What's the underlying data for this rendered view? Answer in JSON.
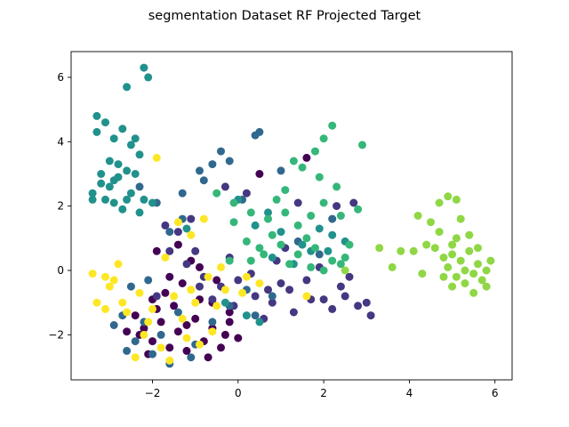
{
  "chart_data": {
    "type": "scatter",
    "title": "segmentation Dataset RF Projected Target",
    "xlabel": "",
    "ylabel": "",
    "xlim": [
      -3.9,
      6.4
    ],
    "ylim": [
      -3.4,
      6.8
    ],
    "xticks": [
      -2,
      0,
      2,
      4,
      6
    ],
    "yticks": [
      -2,
      0,
      2,
      4,
      6
    ],
    "xtick_labels": [
      "−2",
      "0",
      "2",
      "4",
      "6"
    ],
    "ytick_labels": [
      "−2",
      "0",
      "2",
      "4",
      "6"
    ],
    "grid": false,
    "legend": "none",
    "colormap": "viridis",
    "series": [
      {
        "color": "#440154",
        "points": [
          [
            -2.2,
            -1.8
          ],
          [
            -2.0,
            -2.2
          ],
          [
            -1.8,
            -1.6
          ],
          [
            -1.6,
            -2.4
          ],
          [
            -1.9,
            -1.2
          ],
          [
            -2.3,
            -2.0
          ],
          [
            -1.4,
            -1.9
          ],
          [
            -1.2,
            -2.5
          ],
          [
            -1.0,
            -1.5
          ],
          [
            -0.8,
            -2.2
          ],
          [
            -0.6,
            -1.8
          ],
          [
            -0.4,
            -2.4
          ],
          [
            -0.2,
            -1.3
          ],
          [
            0.0,
            -2.1
          ],
          [
            -1.7,
            -0.7
          ],
          [
            -1.3,
            -0.4
          ],
          [
            -1.1,
            0.3
          ],
          [
            -0.9,
            -0.9
          ],
          [
            -0.5,
            -0.3
          ],
          [
            -1.5,
            -1.1
          ],
          [
            -2.1,
            -2.6
          ],
          [
            -0.7,
            -2.7
          ],
          [
            -1.9,
            0.6
          ],
          [
            -1.4,
            0.8
          ],
          [
            -0.9,
            0.1
          ],
          [
            -0.2,
            -1.6
          ],
          [
            -2.4,
            -1.4
          ],
          [
            0.5,
            3.0
          ],
          [
            1.6,
            3.5
          ],
          [
            -0.3,
            -2.0
          ],
          [
            -2.6,
            -1.9
          ],
          [
            -1.6,
            -0.2
          ],
          [
            -0.6,
            -1.0
          ],
          [
            -1.2,
            -1.7
          ],
          [
            -2.0,
            -0.9
          ]
        ]
      },
      {
        "color": "#453781",
        "points": [
          [
            -1.6,
            0.6
          ],
          [
            -1.2,
            0.2
          ],
          [
            -0.8,
            -0.2
          ],
          [
            -0.4,
            -0.5
          ],
          [
            0.0,
            -0.3
          ],
          [
            0.4,
            -0.8
          ],
          [
            0.8,
            -1.0
          ],
          [
            1.2,
            -0.6
          ],
          [
            1.6,
            -0.3
          ],
          [
            2.0,
            -0.9
          ],
          [
            2.4,
            -0.5
          ],
          [
            2.8,
            -1.1
          ],
          [
            3.1,
            -1.4
          ],
          [
            2.6,
            -0.2
          ],
          [
            1.9,
            0.1
          ],
          [
            1.3,
            -1.3
          ],
          [
            0.6,
            -1.5
          ],
          [
            -0.1,
            -1.1
          ],
          [
            -0.6,
            -0.9
          ],
          [
            -1.0,
            0.6
          ],
          [
            -1.9,
            -0.8
          ],
          [
            0.3,
            -0.1
          ],
          [
            1.0,
            -0.4
          ],
          [
            2.2,
            -1.2
          ],
          [
            -1.4,
            1.2
          ],
          [
            -0.3,
            2.6
          ],
          [
            0.2,
            2.4
          ],
          [
            1.4,
            2.1
          ],
          [
            2.3,
            2.0
          ],
          [
            2.7,
            2.1
          ],
          [
            -0.9,
            -0.5
          ],
          [
            0.9,
            0.3
          ],
          [
            3.0,
            -1.0
          ],
          [
            1.7,
            -0.9
          ],
          [
            -0.2,
            0.4
          ],
          [
            0.7,
            -0.6
          ],
          [
            2.5,
            -0.8
          ],
          [
            1.1,
            0.7
          ],
          [
            -1.7,
            1.4
          ],
          [
            -1.1,
            1.6
          ]
        ]
      },
      {
        "color": "#31688e",
        "points": [
          [
            -2.7,
            -1.4
          ],
          [
            -2.4,
            -2.2
          ],
          [
            -2.0,
            -2.6
          ],
          [
            -1.6,
            -2.9
          ],
          [
            -2.2,
            -1.6
          ],
          [
            -1.8,
            -2.0
          ],
          [
            -1.4,
            -1.3
          ],
          [
            -1.0,
            -2.3
          ],
          [
            -0.6,
            -1.6
          ],
          [
            -0.2,
            -1.1
          ],
          [
            0.4,
            -1.4
          ],
          [
            0.8,
            -0.8
          ],
          [
            -1.3,
            1.6
          ],
          [
            -1.6,
            1.2
          ],
          [
            -0.8,
            2.8
          ],
          [
            -0.4,
            3.7
          ],
          [
            -2.3,
            2.6
          ],
          [
            -1.9,
            2.1
          ],
          [
            0.4,
            4.2
          ],
          [
            0.5,
            4.3
          ],
          [
            -2.5,
            -0.5
          ],
          [
            -2.1,
            -0.3
          ],
          [
            1.4,
            0.9
          ],
          [
            2.2,
            1.6
          ],
          [
            -0.2,
            3.4
          ],
          [
            -0.9,
            3.1
          ],
          [
            -1.3,
            2.4
          ],
          [
            0.1,
            2.2
          ],
          [
            1.0,
            3.1
          ],
          [
            -2.9,
            -1.7
          ],
          [
            -0.6,
            3.3
          ],
          [
            1.9,
            0.5
          ],
          [
            -1.1,
            -2.7
          ],
          [
            0.2,
            -0.6
          ],
          [
            -2.6,
            -2.5
          ]
        ]
      },
      {
        "color": "#21918c",
        "points": [
          [
            -3.3,
            4.3
          ],
          [
            -3.1,
            4.6
          ],
          [
            -2.9,
            4.1
          ],
          [
            -3.2,
            3.0
          ],
          [
            -3.0,
            2.6
          ],
          [
            -2.8,
            2.9
          ],
          [
            -3.1,
            2.2
          ],
          [
            -3.4,
            2.4
          ],
          [
            -2.9,
            2.1
          ],
          [
            -2.6,
            3.1
          ],
          [
            -2.5,
            2.4
          ],
          [
            -2.7,
            1.9
          ],
          [
            -3.3,
            4.8
          ],
          [
            -2.7,
            4.4
          ],
          [
            -2.4,
            4.1
          ],
          [
            -2.6,
            5.7
          ],
          [
            -2.2,
            6.3
          ],
          [
            -2.1,
            6.0
          ],
          [
            -3.0,
            3.4
          ],
          [
            -2.8,
            3.3
          ],
          [
            -3.2,
            2.7
          ],
          [
            -2.4,
            3.0
          ],
          [
            -2.3,
            1.8
          ],
          [
            -2.2,
            2.2
          ],
          [
            -2.0,
            2.1
          ],
          [
            -3.4,
            2.2
          ],
          [
            -2.9,
            2.8
          ],
          [
            -2.6,
            2.2
          ],
          [
            -2.3,
            3.6
          ],
          [
            -2.5,
            3.9
          ],
          [
            -1.2,
            1.3
          ],
          [
            0.0,
            2.2
          ],
          [
            0.4,
            1.4
          ],
          [
            0.7,
            1.8
          ],
          [
            1.5,
            0.8
          ],
          [
            1.9,
            1.3
          ],
          [
            2.2,
            1.1
          ],
          [
            2.5,
            0.9
          ],
          [
            1.0,
            1.2
          ],
          [
            0.8,
            0.4
          ],
          [
            1.3,
            0.2
          ],
          [
            1.7,
            0.6
          ],
          [
            0.2,
            -1.4
          ],
          [
            -0.3,
            -1.0
          ],
          [
            0.5,
            -1.6
          ],
          [
            2.1,
            0.6
          ]
        ]
      },
      {
        "color": "#35b779",
        "points": [
          [
            -0.5,
            2.4
          ],
          [
            -0.1,
            2.1
          ],
          [
            0.3,
            1.8
          ],
          [
            0.7,
            1.6
          ],
          [
            1.1,
            1.8
          ],
          [
            1.4,
            1.4
          ],
          [
            1.7,
            1.7
          ],
          [
            2.0,
            2.1
          ],
          [
            2.4,
            1.7
          ],
          [
            2.8,
            1.9
          ],
          [
            1.5,
            3.2
          ],
          [
            1.8,
            3.7
          ],
          [
            2.0,
            4.1
          ],
          [
            2.2,
            4.5
          ],
          [
            2.9,
            3.9
          ],
          [
            1.3,
            3.4
          ],
          [
            1.9,
            2.9
          ],
          [
            0.9,
            2.2
          ],
          [
            0.2,
            0.9
          ],
          [
            0.6,
            0.5
          ],
          [
            1.0,
            0.8
          ],
          [
            1.4,
            0.5
          ],
          [
            1.8,
            0.7
          ],
          [
            2.2,
            0.3
          ],
          [
            2.6,
            0.8
          ],
          [
            -0.2,
            0.3
          ],
          [
            0.3,
            0.3
          ],
          [
            1.2,
            0.2
          ],
          [
            2.0,
            0.0
          ],
          [
            2.4,
            0.2
          ],
          [
            1.6,
            1.0
          ],
          [
            0.8,
            1.1
          ],
          [
            2.3,
            2.6
          ],
          [
            1.1,
            2.5
          ],
          [
            -0.1,
            1.5
          ],
          [
            2.5,
            0.4
          ],
          [
            1.7,
            0.1
          ],
          [
            0.5,
            0.7
          ]
        ]
      },
      {
        "color": "#8fd744",
        "points": [
          [
            4.6,
            0.7
          ],
          [
            4.8,
            0.4
          ],
          [
            5.0,
            0.8
          ],
          [
            5.2,
            0.3
          ],
          [
            5.4,
            0.6
          ],
          [
            5.6,
            0.2
          ],
          [
            5.8,
            0.0
          ],
          [
            5.1,
            -0.2
          ],
          [
            5.3,
            -0.4
          ],
          [
            5.5,
            -0.1
          ],
          [
            4.9,
            0.1
          ],
          [
            5.7,
            -0.3
          ],
          [
            5.5,
            -0.7
          ],
          [
            5.1,
            1.0
          ],
          [
            4.7,
            2.1
          ],
          [
            4.9,
            2.3
          ],
          [
            5.1,
            2.2
          ],
          [
            4.5,
            1.5
          ],
          [
            5.2,
            1.6
          ],
          [
            4.4,
            0.8
          ],
          [
            4.1,
            0.6
          ],
          [
            3.8,
            0.6
          ],
          [
            4.3,
            -0.1
          ],
          [
            5.0,
            -0.5
          ],
          [
            5.9,
            0.3
          ],
          [
            5.4,
            1.1
          ],
          [
            4.7,
            1.2
          ],
          [
            5.6,
            0.7
          ],
          [
            4.2,
            1.7
          ],
          [
            3.3,
            0.7
          ],
          [
            3.6,
            0.1
          ],
          [
            2.5,
            0.0
          ],
          [
            5.3,
            0.0
          ],
          [
            5.8,
            -0.5
          ],
          [
            4.8,
            -0.2
          ],
          [
            5.0,
            0.5
          ]
        ]
      },
      {
        "color": "#fde725",
        "points": [
          [
            -3.4,
            -0.1
          ],
          [
            -3.3,
            -1.0
          ],
          [
            -3.1,
            -0.2
          ],
          [
            -2.9,
            -0.3
          ],
          [
            -2.8,
            0.2
          ],
          [
            -3.1,
            -1.2
          ],
          [
            -2.6,
            -1.3
          ],
          [
            -2.4,
            -2.7
          ],
          [
            -2.2,
            -2.0
          ],
          [
            -2.0,
            -1.2
          ],
          [
            -1.8,
            -2.4
          ],
          [
            -1.5,
            -0.8
          ],
          [
            -1.3,
            -1.5
          ],
          [
            -1.1,
            -0.6
          ],
          [
            -0.9,
            -2.3
          ],
          [
            -0.7,
            -0.2
          ],
          [
            -0.5,
            -1.1
          ],
          [
            -0.3,
            -0.6
          ],
          [
            0.1,
            -0.7
          ],
          [
            0.5,
            -0.4
          ],
          [
            -1.4,
            1.5
          ],
          [
            -1.1,
            1.1
          ],
          [
            -0.8,
            1.6
          ],
          [
            -1.9,
            3.5
          ],
          [
            -1.6,
            -2.8
          ],
          [
            -2.1,
            -1.6
          ],
          [
            -1.2,
            -2.1
          ],
          [
            -0.6,
            -1.9
          ],
          [
            0.2,
            -0.2
          ],
          [
            -3.0,
            -0.5
          ],
          [
            -2.7,
            -1.0
          ],
          [
            1.6,
            -0.8
          ],
          [
            -1.7,
            0.4
          ],
          [
            -0.4,
            0.1
          ],
          [
            -2.3,
            -0.7
          ],
          [
            -1.0,
            -1.0
          ]
        ]
      }
    ]
  }
}
